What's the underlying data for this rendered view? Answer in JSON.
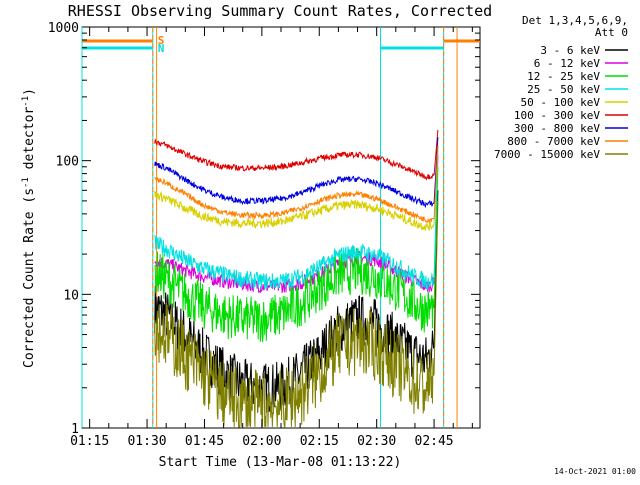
{
  "chart_data": {
    "type": "line",
    "title": "RHESSI Observing Summary Count Rates, Corrected",
    "xlabel": "Start Time (13-Mar-08 01:13:22)",
    "ylabel": "Corrected Count Rate (s⁻¹ detector⁻¹)",
    "ylabel_main": "Corrected Count Rate (s",
    "ylabel_sup1": "-1",
    "ylabel_mid": " detector",
    "ylabel_sup2": "-1",
    "ylabel_end": ")",
    "y_scale": "log",
    "ylim": [
      1,
      1000
    ],
    "xlim_minutes": [
      73,
      177
    ],
    "x_ticks": [
      {
        "min": 75,
        "label": "01:15"
      },
      {
        "min": 90,
        "label": "01:30"
      },
      {
        "min": 105,
        "label": "01:45"
      },
      {
        "min": 120,
        "label": "02:00"
      },
      {
        "min": 135,
        "label": "02:15"
      },
      {
        "min": 150,
        "label": "02:30"
      },
      {
        "min": 165,
        "label": "02:45"
      }
    ],
    "y_ticks": [
      {
        "value": 1,
        "label": "1"
      },
      {
        "value": 10,
        "label": "10"
      },
      {
        "value": 100,
        "label": "100"
      },
      {
        "value": 1000,
        "label": "1000"
      }
    ],
    "legend_header": [
      "Det 1,3,4,5,6,9,",
      "Att 0"
    ],
    "legend_placement": "right",
    "series": [
      {
        "name": "3 - 6 keV",
        "color": "#000000",
        "x": [
          92,
          95,
          100,
          105,
          110,
          115,
          120,
          125,
          130,
          135,
          140,
          145,
          150,
          155,
          160,
          163,
          165,
          166
        ],
        "y": [
          8,
          7,
          5,
          3.5,
          2.6,
          2.1,
          2.0,
          2.0,
          2.5,
          3.5,
          5.5,
          6.5,
          6,
          4.5,
          3.5,
          3.2,
          4,
          60
        ]
      },
      {
        "name": "6 - 12 keV",
        "color": "#dd00dd",
        "x": [
          92,
          95,
          100,
          105,
          110,
          115,
          120,
          125,
          130,
          135,
          140,
          145,
          150,
          155,
          160,
          163,
          165,
          166
        ],
        "y": [
          18,
          17,
          15,
          13.5,
          12.5,
          12,
          11.5,
          11.5,
          12,
          14,
          17,
          19,
          18,
          15,
          12.5,
          11.5,
          12,
          110
        ]
      },
      {
        "name": "12 - 25 keV",
        "color": "#00dd00",
        "x": [
          92,
          95,
          100,
          105,
          110,
          115,
          120,
          125,
          130,
          135,
          140,
          145,
          150,
          155,
          160,
          163,
          165,
          166
        ],
        "y": [
          15,
          13,
          10,
          8,
          7,
          6.5,
          6.5,
          7,
          8.5,
          11,
          14,
          15,
          13.5,
          11,
          8.5,
          7.5,
          8,
          90
        ]
      },
      {
        "name": "25 - 50 keV",
        "color": "#00e0e0",
        "x": [
          92,
          95,
          100,
          105,
          110,
          115,
          120,
          125,
          130,
          135,
          140,
          145,
          150,
          155,
          160,
          163,
          165,
          166
        ],
        "y": [
          24,
          22,
          18,
          15.5,
          14,
          13,
          12.5,
          12.5,
          13.5,
          16,
          19.5,
          21,
          19.5,
          16.5,
          13.5,
          12.5,
          13,
          130
        ]
      },
      {
        "name": "50 - 100 keV",
        "color": "#d8d000",
        "x": [
          92,
          95,
          100,
          105,
          110,
          115,
          120,
          125,
          130,
          135,
          140,
          145,
          150,
          155,
          160,
          163,
          165,
          166
        ],
        "y": [
          56,
          52,
          44,
          38,
          35,
          34,
          34,
          35,
          38,
          42,
          46,
          47,
          44,
          39,
          34,
          32,
          33,
          120
        ]
      },
      {
        "name": "100 - 300 keV",
        "color": "#dd0000",
        "x": [
          92,
          95,
          100,
          105,
          110,
          115,
          120,
          125,
          130,
          135,
          140,
          145,
          150,
          155,
          160,
          163,
          165,
          166
        ],
        "y": [
          140,
          130,
          112,
          98,
          90,
          88,
          88,
          90,
          96,
          104,
          110,
          111,
          106,
          94,
          82,
          76,
          78,
          170
        ]
      },
      {
        "name": "300 - 800 keV",
        "color": "#0000dd",
        "x": [
          92,
          95,
          100,
          105,
          110,
          115,
          120,
          125,
          130,
          135,
          140,
          145,
          150,
          155,
          160,
          163,
          165,
          166
        ],
        "y": [
          95,
          88,
          72,
          60,
          53,
          50,
          50,
          52,
          57,
          65,
          72,
          73,
          68,
          59,
          51,
          47,
          48,
          150
        ]
      },
      {
        "name": "800 - 7000 keV",
        "color": "#ff7f00",
        "x": [
          92,
          95,
          100,
          105,
          110,
          115,
          120,
          125,
          130,
          135,
          140,
          145,
          150,
          155,
          160,
          163,
          165,
          166
        ],
        "y": [
          74,
          68,
          56,
          46,
          41,
          39,
          39,
          40,
          44,
          50,
          55,
          56,
          52,
          45,
          39,
          36,
          37,
          130
        ]
      },
      {
        "name": "7000 - 15000 keV",
        "color": "#808000",
        "x": [
          92,
          95,
          100,
          105,
          110,
          115,
          120,
          125,
          130,
          135,
          140,
          145,
          150,
          155,
          160,
          163,
          165,
          166
        ],
        "y": [
          6,
          5,
          3.5,
          2.5,
          1.8,
          1.5,
          1.5,
          1.5,
          1.8,
          2.6,
          4,
          4.5,
          4,
          3,
          2.2,
          2,
          2.5,
          50
        ]
      }
    ],
    "night_intervals": [
      {
        "start_min": 73,
        "end_min": 91.5
      },
      {
        "start_min": 151,
        "end_min": 167.5
      }
    ],
    "night_label": "N",
    "saa_intervals": [
      {
        "start_min": 73,
        "end_min": 91.5
      },
      {
        "start_min": 167.5,
        "end_min": 177
      }
    ],
    "saa_label": "S",
    "attenuator_marks_min": [
      91.5,
      92.5,
      167.5,
      171
    ]
  },
  "footer_date": "14-Oct-2021 01:00"
}
